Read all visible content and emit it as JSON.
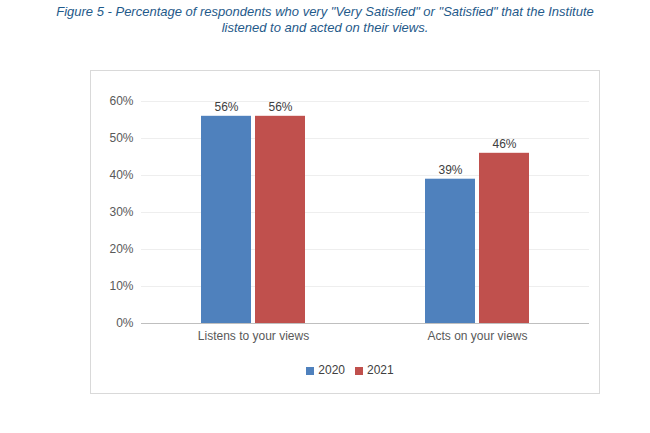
{
  "chart_data": {
    "type": "bar",
    "title": "Figure 5 - Percentage of respondents who very \"Very Satisfied\" or \"Satisfied\" that the Institute listened to and acted on their views.",
    "categories": [
      "Listens to your views",
      "Acts on your views"
    ],
    "series": [
      {
        "name": "2020",
        "color": "#4f81bd",
        "values": [
          56,
          39
        ],
        "value_labels": [
          "56%",
          "39%"
        ]
      },
      {
        "name": "2021",
        "color": "#c0504d",
        "values": [
          56,
          46
        ],
        "value_labels": [
          "56%",
          "46%"
        ]
      }
    ],
    "ylim": [
      0,
      60
    ],
    "yticks": [
      {
        "value": 0,
        "label": "0%"
      },
      {
        "value": 10,
        "label": "10%"
      },
      {
        "value": 20,
        "label": "20%"
      },
      {
        "value": 30,
        "label": "30%"
      },
      {
        "value": 40,
        "label": "40%"
      },
      {
        "value": 50,
        "label": "50%"
      },
      {
        "value": 60,
        "label": "60%"
      }
    ],
    "grid": true,
    "data_labels": true,
    "legend": "bottom"
  }
}
